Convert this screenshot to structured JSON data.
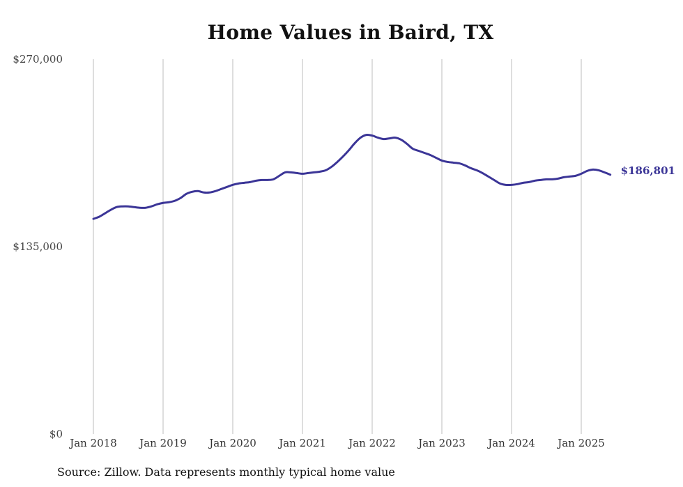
{
  "chart_data": {
    "type": "line",
    "title": "Home Values in Baird, TX",
    "xlabel": "",
    "ylabel": "",
    "ylim": [
      0,
      270000
    ],
    "yticks": [
      0,
      135000,
      270000
    ],
    "ytick_labels": [
      "$0",
      "$135,000",
      "$270,000"
    ],
    "xticks": [
      "2018-01",
      "2019-01",
      "2020-01",
      "2021-01",
      "2022-01",
      "2023-01",
      "2024-01",
      "2025-01"
    ],
    "xtick_labels": [
      "Jan 2018",
      "Jan 2019",
      "Jan 2020",
      "Jan 2021",
      "Jan 2022",
      "Jan 2023",
      "Jan 2024",
      "Jan 2025"
    ],
    "grid": "vertical",
    "line_color": "#3b3597",
    "end_label": "$186,801",
    "series": [
      {
        "name": "",
        "x": [
          "2018-01",
          "2018-02",
          "2018-03",
          "2018-04",
          "2018-05",
          "2018-06",
          "2018-07",
          "2018-08",
          "2018-09",
          "2018-10",
          "2018-11",
          "2018-12",
          "2019-01",
          "2019-02",
          "2019-03",
          "2019-04",
          "2019-05",
          "2019-06",
          "2019-07",
          "2019-08",
          "2019-09",
          "2019-10",
          "2019-11",
          "2019-12",
          "2020-01",
          "2020-02",
          "2020-03",
          "2020-04",
          "2020-05",
          "2020-06",
          "2020-07",
          "2020-08",
          "2020-09",
          "2020-10",
          "2020-11",
          "2020-12",
          "2021-01",
          "2021-02",
          "2021-03",
          "2021-04",
          "2021-05",
          "2021-06",
          "2021-07",
          "2021-08",
          "2021-09",
          "2021-10",
          "2021-11",
          "2021-12",
          "2022-01",
          "2022-02",
          "2022-03",
          "2022-04",
          "2022-05",
          "2022-06",
          "2022-07",
          "2022-08",
          "2022-09",
          "2022-10",
          "2022-11",
          "2022-12",
          "2023-01",
          "2023-02",
          "2023-03",
          "2023-04",
          "2023-05",
          "2023-06",
          "2023-07",
          "2023-08",
          "2023-09",
          "2023-10",
          "2023-11",
          "2023-12",
          "2024-01",
          "2024-02",
          "2024-03",
          "2024-04",
          "2024-05",
          "2024-06",
          "2024-07",
          "2024-08",
          "2024-09",
          "2024-10",
          "2024-11",
          "2024-12",
          "2025-01",
          "2025-02",
          "2025-03",
          "2025-04",
          "2025-05",
          "2025-06"
        ],
        "values": [
          155000,
          156500,
          159000,
          161500,
          163500,
          164000,
          164000,
          163500,
          163000,
          163000,
          164000,
          165500,
          166500,
          167000,
          168000,
          170000,
          173000,
          174500,
          175000,
          174000,
          174000,
          175000,
          176500,
          178000,
          179500,
          180500,
          181000,
          181500,
          182500,
          183000,
          183000,
          183500,
          186000,
          188500,
          188500,
          188000,
          187500,
          188000,
          188500,
          189000,
          190000,
          192500,
          196000,
          200000,
          204500,
          209500,
          213500,
          215500,
          215000,
          213500,
          212500,
          213000,
          213500,
          212000,
          209000,
          205500,
          204000,
          202500,
          201000,
          199000,
          197000,
          196000,
          195500,
          195000,
          193500,
          191500,
          190000,
          188000,
          185500,
          183000,
          180500,
          179500,
          179500,
          180000,
          181000,
          181500,
          182500,
          183000,
          183500,
          183500,
          184000,
          185000,
          185500,
          186000,
          187500,
          189500,
          190500,
          190000,
          188500,
          186801
        ]
      }
    ]
  },
  "source_note": "Source: Zillow. Data represents monthly typical home value"
}
